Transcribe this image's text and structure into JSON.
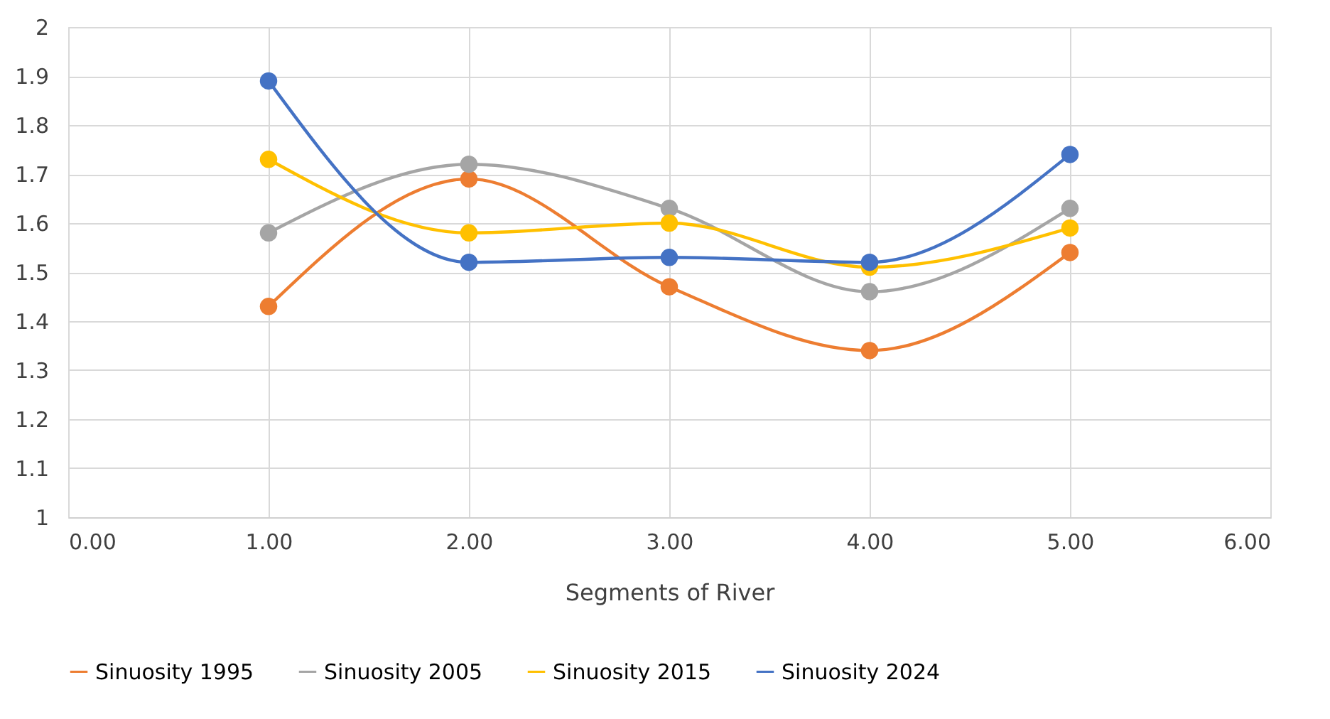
{
  "chart_data": {
    "type": "line",
    "xlabel": "Segments of River",
    "x": [
      1,
      2,
      3,
      4,
      5
    ],
    "series": [
      {
        "name": "Sinuosity 1995",
        "color": "#ed7d31",
        "values": [
          1.43,
          1.69,
          1.47,
          1.34,
          1.54
        ]
      },
      {
        "name": "Sinuosity 2005",
        "color": "#a5a5a5",
        "values": [
          1.58,
          1.72,
          1.63,
          1.46,
          1.63
        ]
      },
      {
        "name": "Sinuosity 2015",
        "color": "#ffc000",
        "values": [
          1.73,
          1.58,
          1.6,
          1.51,
          1.59
        ]
      },
      {
        "name": "Sinuosity 2024",
        "color": "#4472c4",
        "values": [
          1.89,
          1.52,
          1.53,
          1.52,
          1.74
        ]
      }
    ],
    "xlim": [
      0,
      6
    ],
    "xticks": [
      {
        "value": 0,
        "label": "0.00"
      },
      {
        "value": 1,
        "label": "1.00"
      },
      {
        "value": 2,
        "label": "2.00"
      },
      {
        "value": 3,
        "label": "3.00"
      },
      {
        "value": 4,
        "label": "4.00"
      },
      {
        "value": 5,
        "label": "5.00"
      },
      {
        "value": 6,
        "label": "6.00"
      }
    ],
    "ylim": [
      1,
      2
    ],
    "yticks": [
      1,
      1.1,
      1.2,
      1.3,
      1.4,
      1.5,
      1.6,
      1.7,
      1.8,
      1.9,
      2
    ],
    "grid": true,
    "legend": "bottom",
    "marker": "circle",
    "line_style": "solid"
  }
}
